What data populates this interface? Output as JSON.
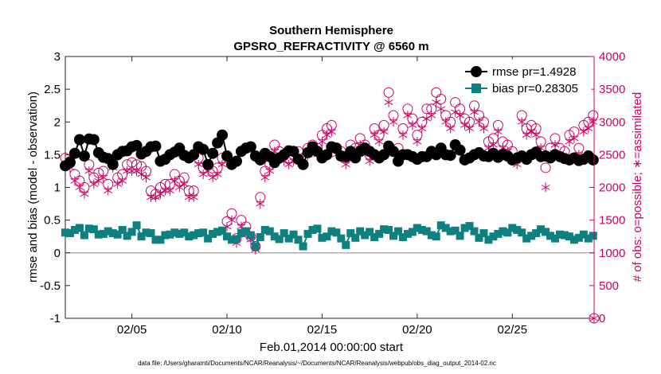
{
  "chart_data": {
    "type": "line",
    "title_line1": "Southern Hemisphere",
    "title_line2": "GPSRO_REFRACTIVITY @ 6560 m",
    "xlabel": "Feb.01,2014 00:00:00 start",
    "ylabel_left": "rmse and bias (model - observation)",
    "ylabel_right": "# of obs: o=possible; ∗=assimilated",
    "footnote": "data file: /Users/gharamti/Documents/NCAR/Reanalysis/~/Documents/NCAR/Reanalysis/webpub/obs_diag_output_2014-02.nc",
    "xlim": [
      1,
      28.8
    ],
    "ylim_left": [
      -1,
      3
    ],
    "ylim_right": [
      0,
      4000
    ],
    "x_ticks": [
      4.5,
      9.5,
      14.5,
      19.5,
      24.5
    ],
    "x_tick_labels": [
      "02/05",
      "02/10",
      "02/15",
      "02/20",
      "02/25"
    ],
    "y_ticks_left": [
      -1,
      -0.5,
      0,
      0.5,
      1,
      1.5,
      2,
      2.5,
      3
    ],
    "y_tick_labels_left": [
      "-1",
      "-0.5",
      "0",
      "0.5",
      "1",
      "1.5",
      "2",
      "2.5",
      "3"
    ],
    "y_ticks_right": [
      0,
      500,
      1000,
      1500,
      2000,
      2500,
      3000,
      3500,
      4000
    ],
    "y_tick_labels_right": [
      "0",
      "500",
      "1000",
      "1500",
      "2000",
      "2500",
      "3000",
      "3500",
      "4000"
    ],
    "legend": [
      "rmse pr=1.4928",
      "bias pr=0.28305"
    ],
    "colors": {
      "rmse": "#000000",
      "bias": "#0f8080",
      "obs": "#cc0066",
      "zero_line": "#b0b0b0"
    },
    "series": [
      {
        "name": "rmse",
        "x": [
          1.0,
          1.25,
          1.5,
          1.75,
          2.0,
          2.25,
          2.5,
          2.75,
          3.0,
          3.25,
          3.5,
          3.75,
          4.0,
          4.25,
          4.5,
          4.75,
          5.0,
          5.25,
          5.5,
          5.75,
          6.0,
          6.25,
          6.5,
          6.75,
          7.0,
          7.25,
          7.5,
          7.75,
          8.0,
          8.25,
          8.5,
          8.75,
          9.0,
          9.25,
          9.5,
          9.75,
          10.0,
          10.25,
          10.5,
          10.75,
          11.0,
          11.25,
          11.5,
          11.75,
          12.0,
          12.25,
          12.5,
          12.75,
          13.0,
          13.25,
          13.5,
          13.75,
          14.0,
          14.25,
          14.5,
          14.75,
          15.0,
          15.25,
          15.5,
          15.75,
          16.0,
          16.25,
          16.5,
          16.75,
          17.0,
          17.25,
          17.5,
          17.75,
          18.0,
          18.25,
          18.5,
          18.75,
          19.0,
          19.25,
          19.5,
          19.75,
          20.0,
          20.25,
          20.5,
          20.75,
          21.0,
          21.25,
          21.5,
          21.75,
          22.0,
          22.25,
          22.5,
          22.75,
          23.0,
          23.25,
          23.5,
          23.75,
          24.0,
          24.25,
          24.5,
          24.75,
          25.0,
          25.25,
          25.5,
          25.75,
          26.0,
          26.25,
          26.5,
          26.75,
          27.0,
          27.25,
          27.5,
          27.75,
          28.0,
          28.25,
          28.5,
          28.75
        ],
        "values": [
          1.33,
          1.38,
          1.52,
          1.73,
          1.48,
          1.74,
          1.73,
          1.53,
          1.46,
          1.44,
          1.35,
          1.5,
          1.55,
          1.56,
          1.62,
          1.64,
          1.51,
          1.55,
          1.62,
          1.63,
          1.4,
          1.43,
          1.5,
          1.54,
          1.6,
          1.49,
          1.45,
          1.5,
          1.62,
          1.58,
          1.35,
          1.52,
          1.68,
          1.8,
          1.48,
          1.35,
          1.4,
          1.55,
          1.6,
          1.62,
          1.48,
          1.42,
          1.52,
          1.47,
          1.38,
          1.45,
          1.5,
          1.56,
          1.55,
          1.43,
          1.35,
          1.53,
          1.62,
          1.55,
          1.45,
          1.5,
          1.62,
          1.6,
          1.48,
          1.47,
          1.55,
          1.45,
          1.55,
          1.6,
          1.55,
          1.5,
          1.45,
          1.5,
          1.63,
          1.55,
          1.4,
          1.5,
          1.5,
          1.47,
          1.43,
          1.47,
          1.47,
          1.55,
          1.5,
          1.6,
          1.5,
          1.49,
          1.65,
          1.57,
          1.42,
          1.45,
          1.5,
          1.53,
          1.48,
          1.47,
          1.52,
          1.46,
          1.5,
          1.48,
          1.42,
          1.45,
          1.48,
          1.43,
          1.5,
          1.54,
          1.47,
          1.48,
          1.45,
          1.5,
          1.47,
          1.44,
          1.42,
          1.45,
          1.41,
          1.43,
          1.48,
          1.42
        ]
      },
      {
        "name": "bias",
        "x": [
          1.0,
          1.25,
          1.5,
          1.75,
          2.0,
          2.25,
          2.5,
          2.75,
          3.0,
          3.25,
          3.5,
          3.75,
          4.0,
          4.25,
          4.5,
          4.75,
          5.0,
          5.25,
          5.5,
          5.75,
          6.0,
          6.25,
          6.5,
          6.75,
          7.0,
          7.25,
          7.5,
          7.75,
          8.0,
          8.25,
          8.5,
          8.75,
          9.0,
          9.25,
          9.5,
          9.75,
          10.0,
          10.25,
          10.5,
          10.75,
          11.0,
          11.25,
          11.5,
          11.75,
          12.0,
          12.25,
          12.5,
          12.75,
          13.0,
          13.25,
          13.5,
          13.75,
          14.0,
          14.25,
          14.5,
          14.75,
          15.0,
          15.25,
          15.5,
          15.75,
          16.0,
          16.25,
          16.5,
          16.75,
          17.0,
          17.25,
          17.5,
          17.75,
          18.0,
          18.25,
          18.5,
          18.75,
          19.0,
          19.25,
          19.5,
          19.75,
          20.0,
          20.25,
          20.5,
          20.75,
          21.0,
          21.25,
          21.5,
          21.75,
          22.0,
          22.25,
          22.5,
          22.75,
          23.0,
          23.25,
          23.5,
          23.75,
          24.0,
          24.25,
          24.5,
          24.75,
          25.0,
          25.25,
          25.5,
          25.75,
          26.0,
          26.25,
          26.5,
          26.75,
          27.0,
          27.25,
          27.5,
          27.75,
          28.0,
          28.25,
          28.5,
          28.75
        ],
        "values": [
          0.31,
          0.3,
          0.35,
          0.38,
          0.27,
          0.37,
          0.36,
          0.28,
          0.29,
          0.33,
          0.3,
          0.28,
          0.35,
          0.26,
          0.32,
          0.42,
          0.25,
          0.31,
          0.3,
          0.2,
          0.2,
          0.27,
          0.28,
          0.31,
          0.29,
          0.31,
          0.25,
          0.27,
          0.3,
          0.31,
          0.22,
          0.29,
          0.32,
          0.34,
          0.25,
          0.2,
          0.21,
          0.3,
          0.33,
          0.27,
          0.1,
          0.24,
          0.35,
          0.33,
          0.25,
          0.21,
          0.3,
          0.22,
          0.28,
          0.2,
          0.1,
          0.29,
          0.35,
          0.37,
          0.23,
          0.25,
          0.33,
          0.31,
          0.22,
          0.12,
          0.3,
          0.23,
          0.33,
          0.27,
          0.32,
          0.24,
          0.29,
          0.36,
          0.35,
          0.26,
          0.33,
          0.24,
          0.29,
          0.32,
          0.38,
          0.35,
          0.33,
          0.27,
          0.25,
          0.42,
          0.38,
          0.33,
          0.34,
          0.26,
          0.38,
          0.41,
          0.33,
          0.23,
          0.3,
          0.2,
          0.25,
          0.29,
          0.33,
          0.31,
          0.38,
          0.35,
          0.31,
          0.22,
          0.26,
          0.3,
          0.36,
          0.32,
          0.26,
          0.22,
          0.28,
          0.27,
          0.25,
          0.2,
          0.23,
          0.28,
          0.22,
          0.26
        ]
      },
      {
        "name": "obs_possible",
        "x": [
          1.0,
          1.25,
          1.5,
          1.75,
          2.0,
          2.25,
          2.5,
          2.75,
          3.0,
          3.25,
          3.5,
          3.75,
          4.0,
          4.25,
          4.5,
          4.75,
          5.0,
          5.25,
          5.5,
          5.75,
          6.0,
          6.25,
          6.5,
          6.75,
          7.0,
          7.25,
          7.5,
          7.75,
          8.0,
          8.25,
          8.5,
          8.75,
          9.0,
          9.25,
          9.5,
          9.75,
          10.0,
          10.25,
          10.5,
          10.75,
          11.0,
          11.25,
          11.5,
          11.75,
          12.0,
          12.25,
          12.5,
          12.75,
          13.0,
          13.25,
          13.5,
          13.75,
          14.0,
          14.25,
          14.5,
          14.75,
          15.0,
          15.25,
          15.5,
          15.75,
          16.0,
          16.25,
          16.5,
          16.75,
          17.0,
          17.25,
          17.5,
          17.75,
          18.0,
          18.25,
          18.5,
          18.75,
          19.0,
          19.25,
          19.5,
          19.75,
          20.0,
          20.25,
          20.5,
          20.75,
          21.0,
          21.25,
          21.5,
          21.75,
          22.0,
          22.25,
          22.5,
          22.75,
          23.0,
          23.25,
          23.5,
          23.75,
          24.0,
          24.25,
          24.5,
          24.75,
          25.0,
          25.25,
          25.5,
          25.75,
          26.0,
          26.25,
          26.5,
          26.75,
          27.0,
          27.25,
          27.5,
          27.75,
          28.0,
          28.25,
          28.5,
          28.75
        ],
        "values": [
          2450,
          2400,
          2200,
          2100,
          2000,
          2350,
          2150,
          2220,
          2250,
          2050,
          2400,
          2150,
          2200,
          2350,
          2380,
          2350,
          2320,
          2250,
          1950,
          1900,
          2000,
          2050,
          2050,
          2200,
          2100,
          2150,
          1950,
          1950,
          2450,
          2300,
          2350,
          2250,
          2300,
          2450,
          1480,
          1600,
          1220,
          1500,
          1400,
          1250,
          1100,
          1850,
          2250,
          2350,
          2650,
          2550,
          2500,
          2450,
          2500,
          2550,
          2450,
          2600,
          2650,
          2600,
          2800,
          2900,
          2950,
          2600,
          2550,
          2450,
          2650,
          2600,
          2750,
          2650,
          2500,
          2900,
          2800,
          2950,
          3450,
          3100,
          2600,
          2900,
          3200,
          3050,
          2800,
          3000,
          3200,
          3200,
          3450,
          3350,
          3100,
          3000,
          3300,
          3200,
          3050,
          3000,
          3250,
          3100,
          3000,
          2700,
          2750,
          2950,
          2700,
          2650,
          2550,
          2450,
          3100,
          2900,
          2950,
          2900,
          2700,
          2300,
          2600,
          2750,
          2600,
          2550,
          2800,
          2850,
          2600,
          2950,
          3000,
          3100
        ]
      },
      {
        "name": "obs_assimilated",
        "x": [
          1.0,
          1.25,
          1.5,
          1.75,
          2.0,
          2.25,
          2.5,
          2.75,
          3.0,
          3.25,
          3.5,
          3.75,
          4.0,
          4.25,
          4.5,
          4.75,
          5.0,
          5.25,
          5.5,
          5.75,
          6.0,
          6.25,
          6.5,
          6.75,
          7.0,
          7.25,
          7.5,
          7.75,
          8.0,
          8.25,
          8.5,
          8.75,
          9.0,
          9.25,
          9.5,
          9.75,
          10.0,
          10.25,
          10.5,
          10.75,
          11.0,
          11.25,
          11.5,
          11.75,
          12.0,
          12.25,
          12.5,
          12.75,
          13.0,
          13.25,
          13.5,
          13.75,
          14.0,
          14.25,
          14.5,
          14.75,
          15.0,
          15.25,
          15.5,
          15.75,
          16.0,
          16.25,
          16.5,
          16.75,
          17.0,
          17.25,
          17.5,
          17.75,
          18.0,
          18.25,
          18.5,
          18.75,
          19.0,
          19.25,
          19.5,
          19.75,
          20.0,
          20.25,
          20.5,
          20.75,
          21.0,
          21.25,
          21.5,
          21.75,
          22.0,
          22.25,
          22.5,
          22.75,
          23.0,
          23.25,
          23.5,
          23.75,
          24.0,
          24.25,
          24.5,
          24.75,
          25.0,
          25.25,
          25.5,
          25.75,
          26.0,
          26.25,
          26.5,
          26.75,
          27.0,
          27.25,
          27.5,
          27.75,
          28.0,
          28.25,
          28.5,
          28.75
        ],
        "values": [
          2350,
          2300,
          2100,
          2000,
          1900,
          2250,
          2050,
          2100,
          2150,
          1950,
          2300,
          2050,
          2100,
          2250,
          2250,
          2250,
          2200,
          2150,
          1850,
          1850,
          1900,
          1950,
          1950,
          2100,
          2000,
          2050,
          1850,
          1850,
          2350,
          2200,
          2250,
          2150,
          2200,
          2350,
          1400,
          1500,
          1150,
          1400,
          1300,
          1200,
          1050,
          1750,
          2150,
          2250,
          2550,
          2450,
          2400,
          2350,
          2400,
          2450,
          2350,
          2500,
          2550,
          2500,
          2700,
          2800,
          2850,
          2500,
          2450,
          2350,
          2550,
          2500,
          2650,
          2550,
          2400,
          2800,
          2700,
          2850,
          3300,
          3000,
          2500,
          2800,
          3100,
          2950,
          2700,
          2900,
          3050,
          3100,
          3300,
          3200,
          3000,
          2900,
          3150,
          3100,
          2950,
          2900,
          3150,
          3000,
          2900,
          2600,
          2650,
          2850,
          2600,
          2550,
          2450,
          2350,
          3000,
          2800,
          2850,
          2800,
          2600,
          2000,
          2500,
          2650,
          2500,
          2450,
          2700,
          2750,
          2500,
          2850,
          2900,
          3000
        ]
      }
    ]
  }
}
